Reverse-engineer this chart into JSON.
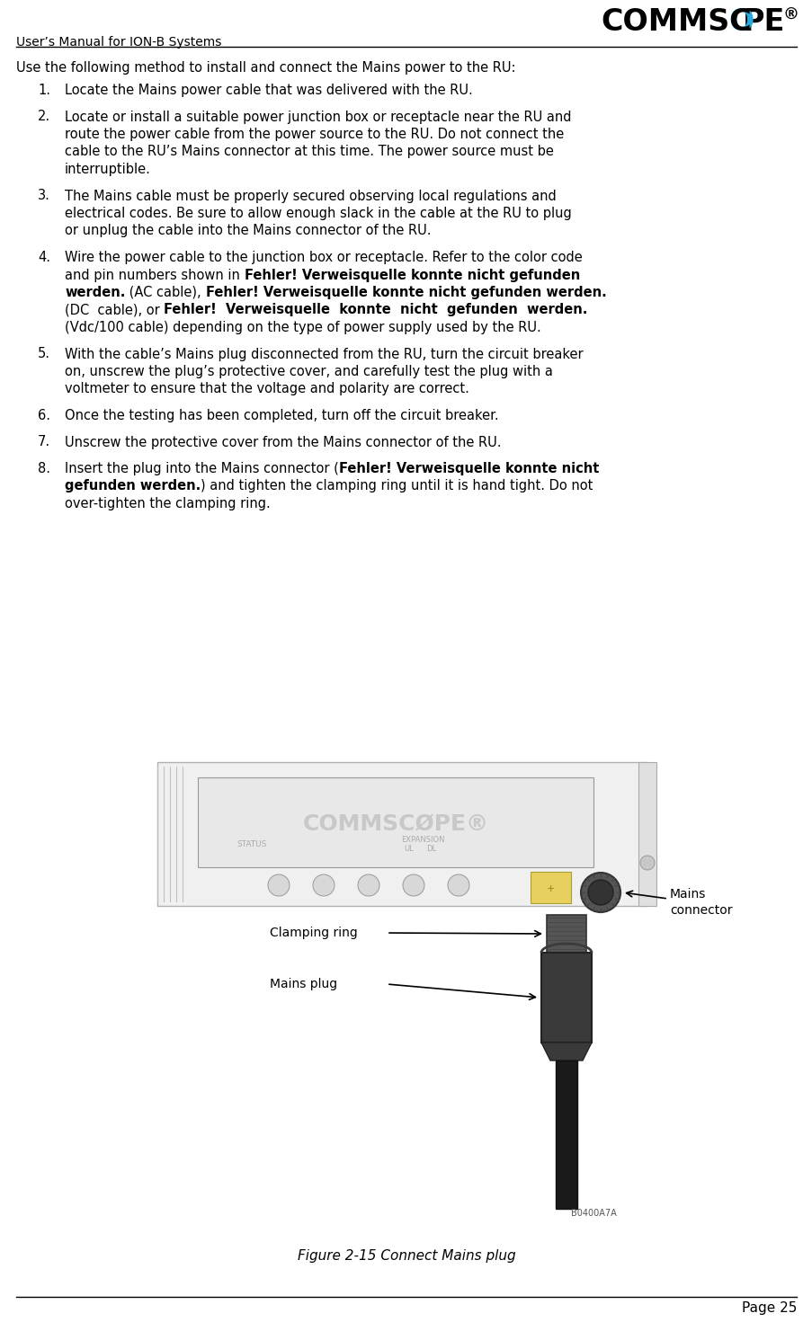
{
  "page_title": "User’s Manual for ION-B Systems",
  "page_number": "Page 25",
  "figure_caption": "Figure 2-15 Connect Mains plug",
  "intro_text": "Use the following method to install and connect the Mains power to the RU:",
  "items": [
    {
      "num": "1.",
      "lines": [
        [
          {
            "t": "Locate the Mains power cable that was delivered with the RU.",
            "b": false
          }
        ]
      ]
    },
    {
      "num": "2.",
      "lines": [
        [
          {
            "t": "Locate or install a suitable power junction box or receptacle near the RU and",
            "b": false
          }
        ],
        [
          {
            "t": "route the power cable from the power source to the RU. Do not connect the",
            "b": false
          }
        ],
        [
          {
            "t": "cable to the RU’s Mains connector at this time. The power source must be",
            "b": false
          }
        ],
        [
          {
            "t": "interruptible.",
            "b": false
          }
        ]
      ]
    },
    {
      "num": "3.",
      "lines": [
        [
          {
            "t": "The Mains cable must be properly secured observing local regulations and",
            "b": false
          }
        ],
        [
          {
            "t": "electrical codes. Be sure to allow enough slack in the cable at the RU to plug",
            "b": false
          }
        ],
        [
          {
            "t": "or unplug the cable into the Mains connector of the RU.",
            "b": false
          }
        ]
      ]
    },
    {
      "num": "4.",
      "lines": [
        [
          {
            "t": "Wire the power cable to the junction box or receptacle. Refer to the color code",
            "b": false
          }
        ],
        [
          {
            "t": "and pin numbers shown in ",
            "b": false
          },
          {
            "t": "Fehler! Verweisquelle konnte nicht gefunden",
            "b": true
          }
        ],
        [
          {
            "t": "werden.",
            "b": true
          },
          {
            "t": " (AC cable), ",
            "b": false
          },
          {
            "t": "Fehler! Verweisquelle konnte nicht gefunden werden.",
            "b": true
          }
        ],
        [
          {
            "t": "(DC  cable), or ",
            "b": false
          },
          {
            "t": "Fehler!  Verweisquelle  konnte  nicht  gefunden  werden.",
            "b": true
          }
        ],
        [
          {
            "t": "(Vdc/100 cable) depending on the type of power supply used by the RU.",
            "b": false
          }
        ]
      ]
    },
    {
      "num": "5.",
      "lines": [
        [
          {
            "t": "With the cable’s Mains plug disconnected from the RU, turn the circuit breaker",
            "b": false
          }
        ],
        [
          {
            "t": "on, unscrew the plug’s protective cover, and carefully test the plug with a",
            "b": false
          }
        ],
        [
          {
            "t": "voltmeter to ensure that the voltage and polarity are correct.",
            "b": false
          }
        ]
      ]
    },
    {
      "num": "6.",
      "lines": [
        [
          {
            "t": "Once the testing has been completed, turn off the circuit breaker.",
            "b": false
          }
        ]
      ]
    },
    {
      "num": "7.",
      "lines": [
        [
          {
            "t": "Unscrew the protective cover from the Mains connector of the RU.",
            "b": false
          }
        ]
      ]
    },
    {
      "num": "8.",
      "lines": [
        [
          {
            "t": "Insert the plug into the Mains connector (",
            "b": false
          },
          {
            "t": "Fehler! Verweisquelle konnte nicht",
            "b": true
          }
        ],
        [
          {
            "t": "gefunden werden.",
            "b": true
          },
          {
            "t": ") and tighten the clamping ring until it is hand tight. Do not",
            "b": false
          }
        ],
        [
          {
            "t": "over-tighten the clamping ring.",
            "b": false
          }
        ]
      ]
    }
  ],
  "bg_color": "#ffffff",
  "fig_width": 9.04,
  "fig_height": 14.81
}
